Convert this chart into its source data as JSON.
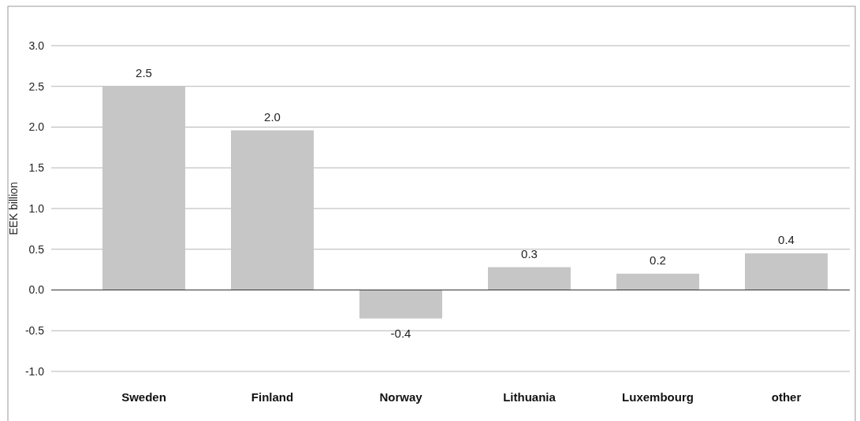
{
  "chart_data": {
    "type": "bar",
    "ylabel": "EEK billion",
    "categories": [
      "Sweden",
      "Finland",
      "Norway",
      "Lithuania",
      "Luxembourg",
      "other"
    ],
    "values": [
      2.5,
      1.96,
      -0.35,
      0.28,
      0.2,
      0.45
    ],
    "value_labels": [
      "2.5",
      "2.0",
      "-0.4",
      "0.3",
      "0.2",
      "0.4"
    ],
    "color": "#c6c6c6",
    "ylim": [
      -1.0,
      3.0
    ],
    "yticks": [
      {
        "value": -1,
        "label": "-1.0"
      },
      {
        "value": -0.5,
        "label": "-0.5"
      },
      {
        "value": 0,
        "label": "0.0"
      },
      {
        "value": 0.5,
        "label": "0.5"
      },
      {
        "value": 1,
        "label": "1.0"
      },
      {
        "value": 1.5,
        "label": "1.5"
      },
      {
        "value": 2,
        "label": "2.0"
      },
      {
        "value": 2.5,
        "label": "2.5"
      },
      {
        "value": 3,
        "label": "3.0"
      }
    ],
    "grid": "y"
  }
}
